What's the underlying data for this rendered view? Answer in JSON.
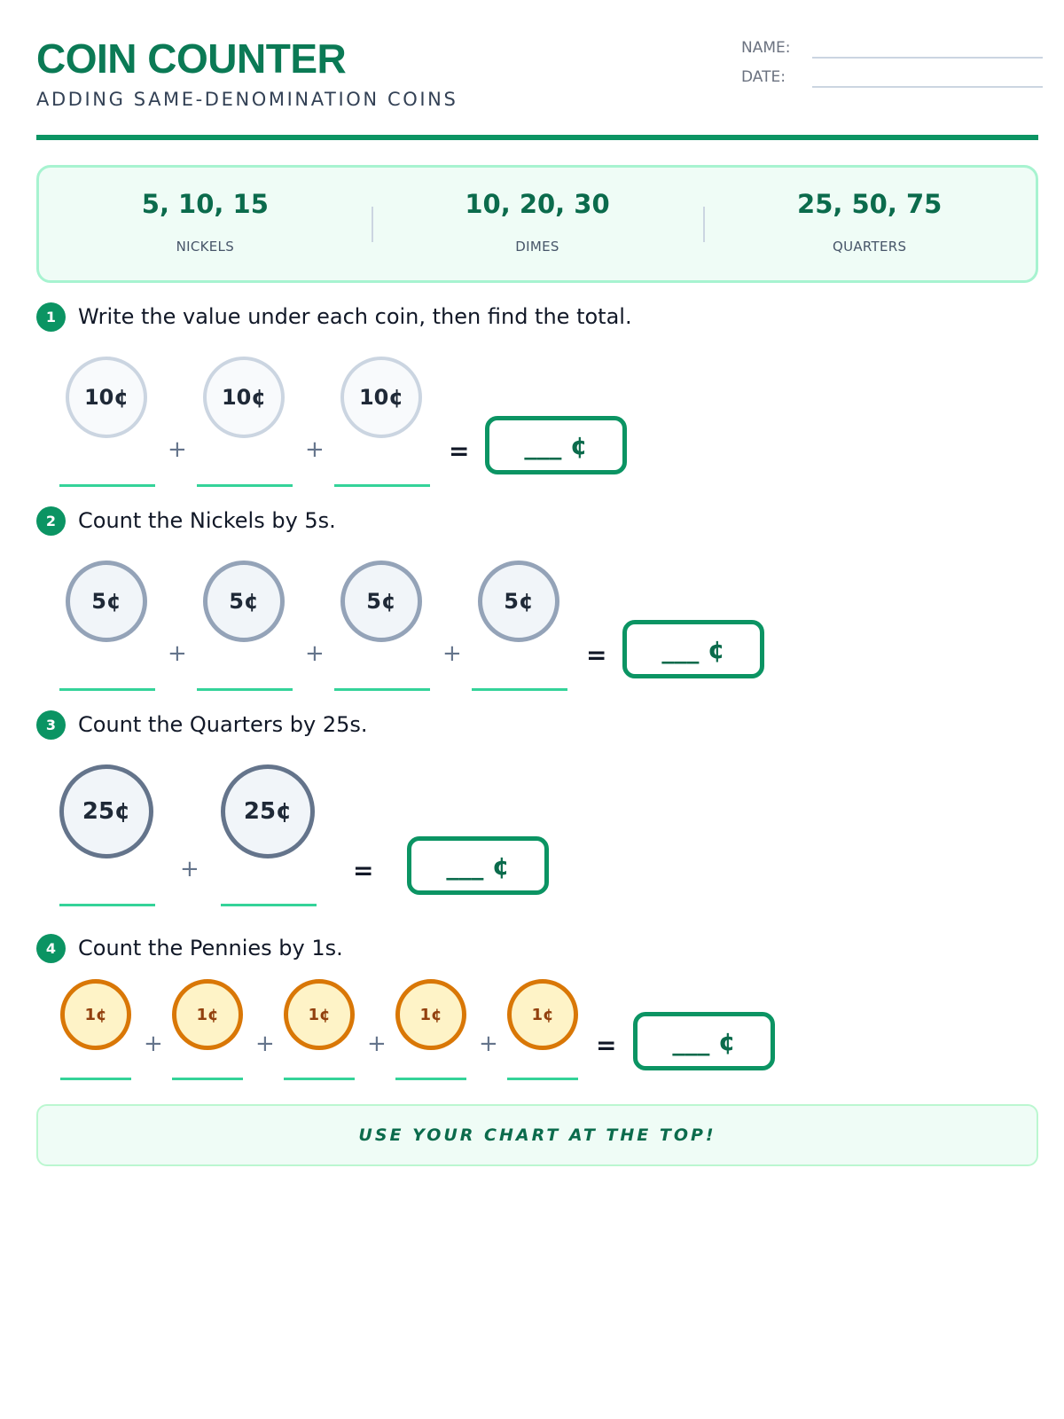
{
  "header": {
    "title": "COIN COUNTER",
    "subtitle": "ADDING SAME-DENOMINATION COINS",
    "name_label": "NAME:",
    "date_label": "DATE:"
  },
  "chart": [
    {
      "sequence": "5, 10, 15",
      "coin": "NICKELS"
    },
    {
      "sequence": "10, 20, 30",
      "coin": "DIMES"
    },
    {
      "sequence": "25, 50, 75",
      "coin": "QUARTERS"
    }
  ],
  "questions": [
    {
      "number": "1",
      "text": "Write the value under each coin, then find the total.",
      "coins": [
        "10¢",
        "10¢",
        "10¢"
      ],
      "answer": "___ ¢"
    },
    {
      "number": "2",
      "text": "Count the Nickels by 5s.",
      "coins": [
        "5¢",
        "5¢",
        "5¢",
        "5¢"
      ],
      "answer": "___ ¢"
    },
    {
      "number": "3",
      "text": "Count the Quarters by 25s.",
      "coins": [
        "25¢",
        "25¢"
      ],
      "answer": "___ ¢"
    },
    {
      "number": "4",
      "text": "Count the Pennies by 1s.",
      "coins": [
        "1¢",
        "1¢",
        "1¢",
        "1¢",
        "1¢"
      ],
      "answer": "___ ¢"
    }
  ],
  "symbols": {
    "plus": "+",
    "equals": "="
  },
  "footer": {
    "text": "USE YOUR CHART AT THE TOP!"
  },
  "colors": {
    "accent": "#0b9463",
    "penny": "#d97706",
    "nickel": "#94a3b8",
    "quarter": "#64748b",
    "dime": "#cbd5e1"
  }
}
